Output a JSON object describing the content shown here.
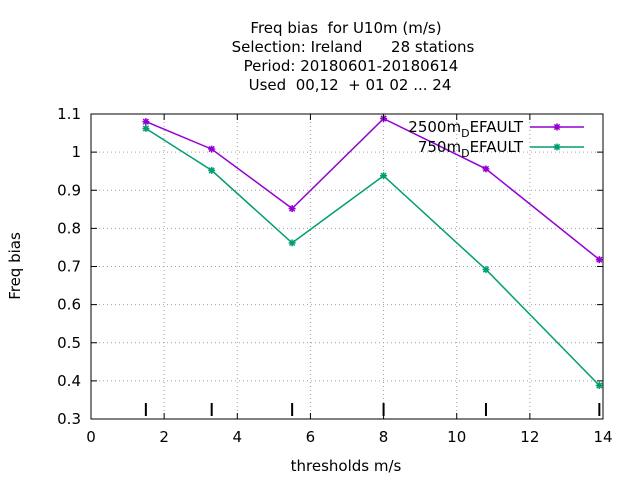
{
  "chart_data": {
    "type": "line",
    "title_lines": [
      "Freq bias  for U10m (m/s)",
      "Selection: Ireland      28 stations",
      "Period: 20180601-20180614",
      "Used  00,12  + 01 02 ... 24"
    ],
    "xlabel": "thresholds m/s",
    "ylabel": "Freq bias",
    "xlim": [
      0,
      14
    ],
    "ylim": [
      0.3,
      1.1
    ],
    "xticks": [
      0,
      2,
      4,
      6,
      8,
      10,
      12,
      14
    ],
    "yticks": [
      0.3,
      0.4,
      0.5,
      0.6,
      0.7,
      0.8,
      0.9,
      1,
      1.1
    ],
    "xtick_labels": [
      "0",
      "2",
      "4",
      "6",
      "8",
      "10",
      "12",
      "14"
    ],
    "ytick_labels": [
      "0.3",
      "0.4",
      "0.5",
      "0.6",
      "0.7",
      "0.8",
      "0.9",
      "1",
      "1.1"
    ],
    "grid": true,
    "legend_position": "top-right",
    "threshold_markers": [
      1.5,
      3.3,
      5.5,
      8,
      10.8,
      13.9
    ],
    "series": [
      {
        "name": "2500m_DEFAULT",
        "legend_main": "2500m",
        "legend_sub": "D",
        "legend_tail": "EFAULT",
        "color": "#9400d3",
        "x": [
          1.5,
          3.3,
          5.5,
          8,
          10.8,
          13.9
        ],
        "y": [
          1.08,
          1.008,
          0.852,
          1.088,
          0.956,
          0.718
        ]
      },
      {
        "name": "750m_DEFAULT",
        "legend_main": "750m",
        "legend_sub": "D",
        "legend_tail": "EFAULT",
        "color": "#009e73",
        "x": [
          1.5,
          3.3,
          5.5,
          8,
          10.8,
          13.9
        ],
        "y": [
          1.062,
          0.952,
          0.762,
          0.938,
          0.692,
          0.388
        ]
      }
    ]
  }
}
